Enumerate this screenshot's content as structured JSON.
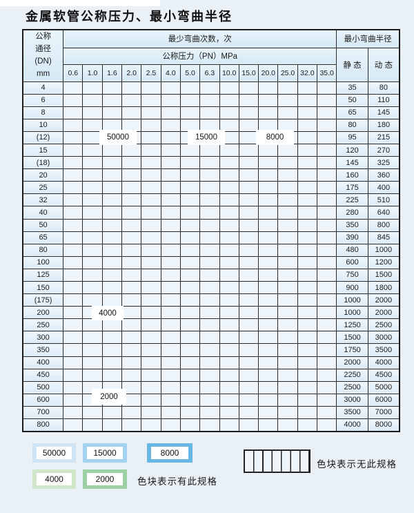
{
  "page": {
    "title": "金属软管公称压力、最小弯曲半径"
  },
  "table": {
    "dn_header_lines": [
      "公称",
      "通径",
      "(DN)",
      "mm"
    ],
    "bend_times_header": "最少弯曲次数，次",
    "pressure_header": "公称压力（PN）MPa",
    "radius_header": "最小弯曲半径",
    "static_header": "静 态",
    "dynamic_header": "动 态",
    "pressure_columns": [
      "0.6",
      "1.0",
      "1.6",
      "2.0",
      "2.5",
      "4.0",
      "5.0",
      "6.3",
      "10.0",
      "15.0",
      "20.0",
      "25.0",
      "32.0",
      "35.0"
    ],
    "cell_code_meaning": {
      "1": "50000次",
      "2": "15000次",
      "3": "8000次",
      "4": "4000次",
      "5": "2000次",
      "X": "无此规格"
    },
    "rows": [
      {
        "dn": "4",
        "pattern": "11111222233333",
        "static": "35",
        "dynamic": "80"
      },
      {
        "dn": "6",
        "pattern": "111112222333XX",
        "static": "50",
        "dynamic": "110"
      },
      {
        "dn": "8",
        "pattern": "111112222333XX",
        "static": "65",
        "dynamic": "145"
      },
      {
        "dn": "10",
        "pattern": "111112222333XX",
        "static": "80",
        "dynamic": "180"
      },
      {
        "dn": "(12)",
        "pattern": "111112222333XX",
        "static": "95",
        "dynamic": "215"
      },
      {
        "dn": "15",
        "pattern": "111112223333XX",
        "static": "120",
        "dynamic": "270"
      },
      {
        "dn": "(18)",
        "pattern": "11111222333XXX",
        "static": "145",
        "dynamic": "325"
      },
      {
        "dn": "20",
        "pattern": "11111222333XXX",
        "static": "160",
        "dynamic": "360"
      },
      {
        "dn": "25",
        "pattern": "1111112233XXXX",
        "static": "175",
        "dynamic": "400"
      },
      {
        "dn": "32",
        "pattern": "111111233XXXXX",
        "static": "225",
        "dynamic": "510"
      },
      {
        "dn": "40",
        "pattern": "111112233XXXXX",
        "static": "280",
        "dynamic": "640"
      },
      {
        "dn": "50",
        "pattern": "11112233XXXXXX",
        "static": "350",
        "dynamic": "800"
      },
      {
        "dn": "65",
        "pattern": "11222233XXXXXX",
        "static": "390",
        "dynamic": "845"
      },
      {
        "dn": "80",
        "pattern": "1122233XXXXXXX",
        "static": "480",
        "dynamic": "1000"
      },
      {
        "dn": "100",
        "pattern": "444444XXXXXXXX",
        "static": "600",
        "dynamic": "1200"
      },
      {
        "dn": "125",
        "pattern": "444444XXXXXXXX",
        "static": "750",
        "dynamic": "1500"
      },
      {
        "dn": "150",
        "pattern": "444444XXXXXXXX",
        "static": "900",
        "dynamic": "1800"
      },
      {
        "dn": "(175)",
        "pattern": "444444XXXXXXXX",
        "static": "1000",
        "dynamic": "2000"
      },
      {
        "dn": "200",
        "pattern": "444444XXXXXXXX",
        "static": "1000",
        "dynamic": "2000"
      },
      {
        "dn": "250",
        "pattern": "444444XXXXXXXX",
        "static": "1250",
        "dynamic": "2500"
      },
      {
        "dn": "300",
        "pattern": "444444XXXXXXXX",
        "static": "1500",
        "dynamic": "3000"
      },
      {
        "dn": "350",
        "pattern": "55555XXXXXXXXX",
        "static": "1750",
        "dynamic": "3500"
      },
      {
        "dn": "400",
        "pattern": "55555XXXXXXXXX",
        "static": "2000",
        "dynamic": "4000"
      },
      {
        "dn": "450",
        "pattern": "55555XXXXXXXXX",
        "static": "2250",
        "dynamic": "4500"
      },
      {
        "dn": "500",
        "pattern": "55555XXXXXXXXX",
        "static": "2500",
        "dynamic": "5000"
      },
      {
        "dn": "600",
        "pattern": "5555XXXXXXXXXX",
        "static": "3000",
        "dynamic": "6000"
      },
      {
        "dn": "700",
        "pattern": "555XXXXXXXXXXX",
        "static": "3500",
        "dynamic": "7000"
      },
      {
        "dn": "800",
        "pattern": "555XXXXXXXXXXX",
        "static": "4000",
        "dynamic": "8000"
      }
    ],
    "zone_labels": [
      {
        "text": "50000"
      },
      {
        "text": "15000"
      },
      {
        "text": "8000"
      },
      {
        "text": "4000"
      },
      {
        "text": "2000"
      }
    ]
  },
  "legend": {
    "items": [
      {
        "value": "50000",
        "color_key": "blue_50000"
      },
      {
        "value": "15000",
        "color_key": "blue_15000"
      },
      {
        "value": "8000",
        "color_key": "blue_8000"
      },
      {
        "value": "4000",
        "color_key": "green_4000"
      },
      {
        "value": "2000",
        "color_key": "green_2000"
      }
    ],
    "has_spec_note": "色块表示有此规格",
    "no_spec_note": "色块表示无此规格"
  },
  "colors": {
    "blue_50000": "#cfe5f5",
    "blue_15000": "#a4d2ef",
    "blue_8000": "#68b7e5",
    "green_4000": "#cfe6ca",
    "green_2000": "#9bd0a5",
    "hatch_bg": "#eef5fb",
    "border": "#2a2a2a"
  }
}
